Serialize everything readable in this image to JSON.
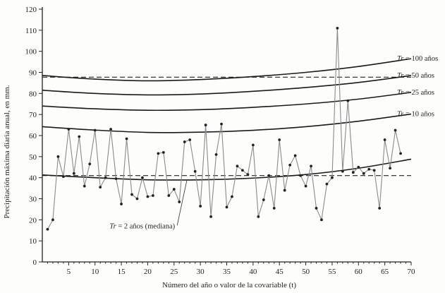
{
  "chart_data": {
    "type": "line",
    "title": "",
    "xlabel": "Número del año o valor de la covariable (t)",
    "ylabel": "Precipitación máxima diaria anual, en mm.",
    "xlim": [
      0,
      70
    ],
    "ylim": [
      0,
      120
    ],
    "xticks": [
      5,
      10,
      15,
      20,
      25,
      30,
      35,
      40,
      45,
      50,
      55,
      60,
      65,
      70
    ],
    "yticks": [
      0,
      10,
      20,
      30,
      40,
      50,
      60,
      70,
      80,
      90,
      100,
      110,
      120
    ],
    "grid": false,
    "legend": "none",
    "observed": {
      "x": [
        1,
        2,
        3,
        4,
        5,
        6,
        7,
        8,
        9,
        10,
        11,
        12,
        13,
        14,
        15,
        16,
        17,
        18,
        19,
        20,
        21,
        22,
        23,
        24,
        25,
        26,
        27,
        28,
        29,
        30,
        31,
        32,
        33,
        34,
        35,
        36,
        37,
        38,
        39,
        40,
        41,
        42,
        43,
        44,
        45,
        46,
        47,
        48,
        49,
        50,
        51,
        52,
        53,
        54,
        55,
        56,
        57,
        58,
        59,
        60,
        61,
        62,
        63,
        64,
        65,
        66,
        67,
        68
      ],
      "y": [
        15.5,
        20,
        50,
        40.5,
        63,
        42,
        59.5,
        36,
        46.5,
        62.5,
        35.5,
        40,
        63,
        39.5,
        27.5,
        58.5,
        32,
        30,
        40,
        31,
        31.5,
        51.5,
        52,
        31.5,
        34.5,
        28.5,
        57,
        58,
        43,
        26.5,
        65,
        21.5,
        51,
        65.5,
        26,
        31,
        45.5,
        43.5,
        41.5,
        55.5,
        21.5,
        29.5,
        41,
        25.5,
        58,
        34,
        46,
        50.5,
        41,
        36,
        45.5,
        25.5,
        20,
        37,
        40,
        111,
        43,
        76.5,
        42.5,
        45,
        42,
        44,
        43.5,
        25.5,
        58,
        44.5,
        62.5,
        51.5
      ]
    },
    "curves": [
      {
        "label_prefix": "Tr",
        "label_rest": " = 100 años",
        "x": [
          0,
          10,
          20,
          30,
          40,
          50,
          60,
          70
        ],
        "y": [
          88.5,
          86.8,
          86,
          86.6,
          88,
          90,
          92.8,
          96.5
        ]
      },
      {
        "label_prefix": "Tr",
        "label_rest": " = 50 años",
        "x": [
          0,
          10,
          20,
          30,
          40,
          50,
          60,
          70
        ],
        "y": [
          81.5,
          80,
          79.3,
          79.7,
          81,
          82.8,
          85.2,
          88.5
        ]
      },
      {
        "label_prefix": "Tr",
        "label_rest": " = 25 años",
        "x": [
          0,
          10,
          20,
          30,
          40,
          50,
          60,
          70
        ],
        "y": [
          74,
          72.7,
          72,
          72.3,
          73.4,
          75,
          77.3,
          80.5
        ]
      },
      {
        "label_prefix": "Tr",
        "label_rest": " = 10 años",
        "x": [
          0,
          10,
          20,
          30,
          40,
          50,
          60,
          70
        ],
        "y": [
          64.2,
          62.6,
          61.5,
          61.6,
          62.5,
          64.2,
          66.8,
          70.2
        ]
      },
      {
        "label_prefix": "",
        "label_rest": "",
        "x": [
          0,
          10,
          20,
          30,
          40,
          50,
          60,
          70
        ],
        "y": [
          41.3,
          40,
          39,
          39,
          39.8,
          41.5,
          44.5,
          48.8
        ]
      }
    ],
    "dashed_lines": [
      {
        "y": 87.7,
        "x": [
          0,
          70
        ]
      },
      {
        "y": 41,
        "x": [
          0,
          70
        ]
      }
    ],
    "annotation": {
      "label_prefix": "Tr",
      "label_rest": " = 2 años (mediana)",
      "point_x": 28,
      "point_y": 38.5
    }
  }
}
